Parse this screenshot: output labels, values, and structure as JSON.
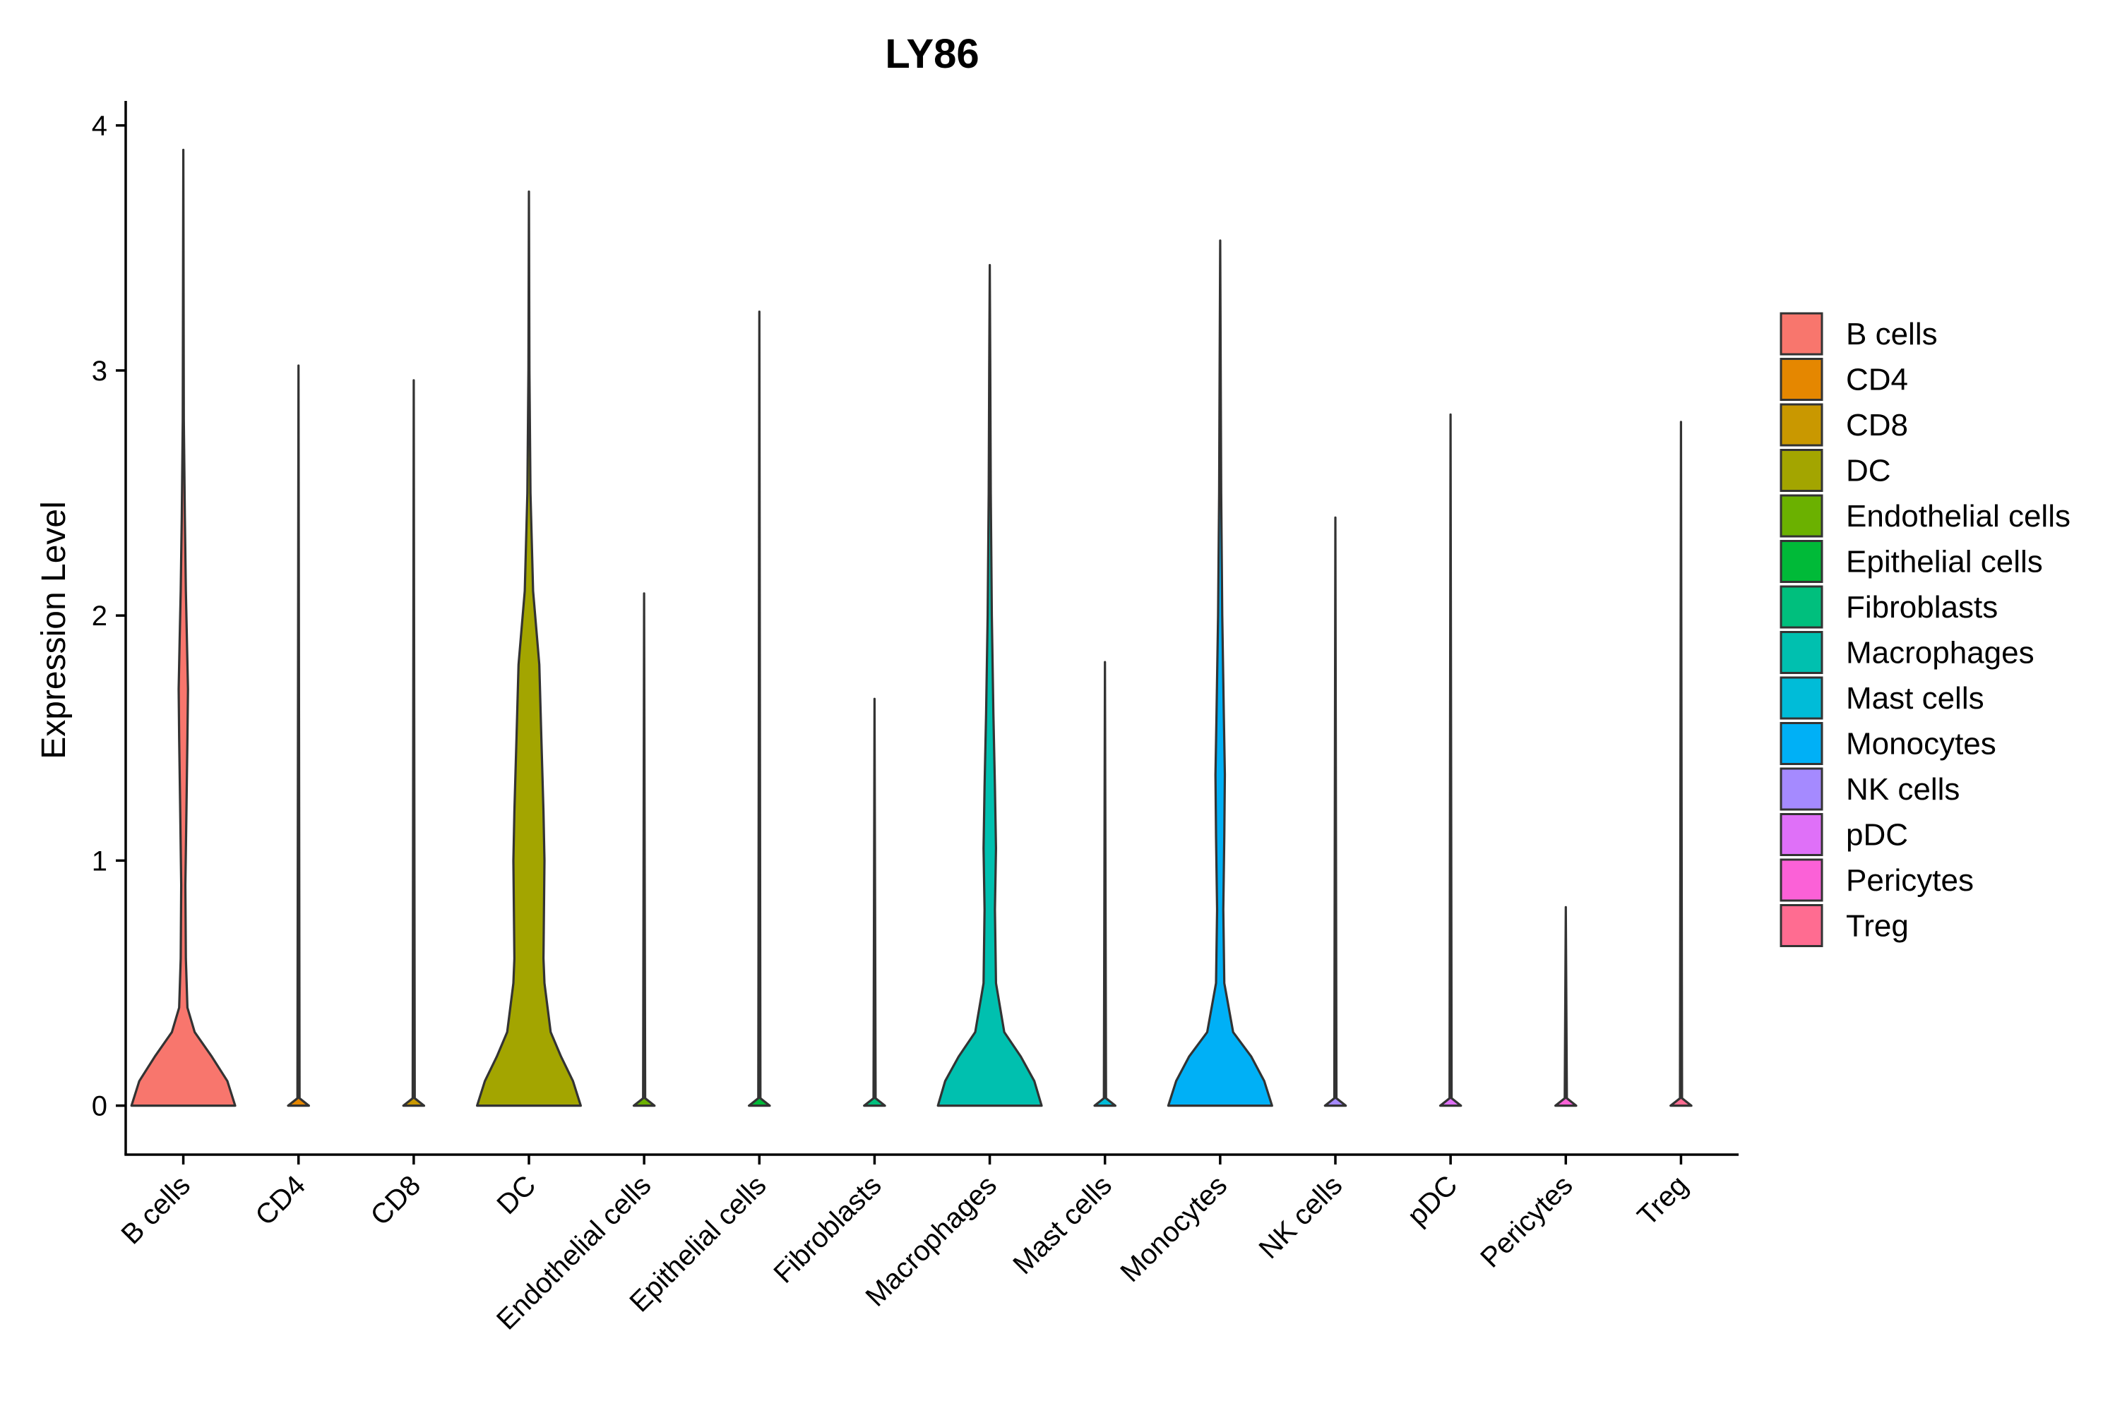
{
  "chart_data": {
    "type": "violin",
    "title": "LY86",
    "xlabel": "",
    "ylabel": "Expression Level",
    "ylim": [
      -0.2,
      4.1
    ],
    "yticks": [
      0,
      1,
      2,
      3,
      4
    ],
    "categories": [
      "B cells",
      "CD4",
      "CD8",
      "DC",
      "Endothelial cells",
      "Epithelial cells",
      "Fibroblasts",
      "Macrophages",
      "Mast cells",
      "Monocytes",
      "NK cells",
      "pDC",
      "Pericytes",
      "Treg"
    ],
    "max_values": [
      3.9,
      3.02,
      2.96,
      3.73,
      2.09,
      3.24,
      1.66,
      3.43,
      1.81,
      3.53,
      2.4,
      2.82,
      0.81,
      2.79
    ],
    "violin_profiles": [
      [
        [
          0,
          1.0
        ],
        [
          0.1,
          0.85
        ],
        [
          0.2,
          0.55
        ],
        [
          0.3,
          0.22
        ],
        [
          0.4,
          0.08
        ],
        [
          0.6,
          0.05
        ],
        [
          0.9,
          0.04
        ],
        [
          1.2,
          0.06
        ],
        [
          1.5,
          0.08
        ],
        [
          1.7,
          0.09
        ],
        [
          1.9,
          0.07
        ],
        [
          2.1,
          0.05
        ],
        [
          2.4,
          0.03
        ],
        [
          2.8,
          0.01
        ],
        [
          3.9,
          0.0
        ]
      ],
      [
        [
          0,
          0.2
        ],
        [
          0.03,
          0.02
        ],
        [
          3.02,
          0.0
        ]
      ],
      [
        [
          0,
          0.2
        ],
        [
          0.03,
          0.02
        ],
        [
          2.96,
          0.0
        ]
      ],
      [
        [
          0,
          1.0
        ],
        [
          0.1,
          0.85
        ],
        [
          0.2,
          0.62
        ],
        [
          0.3,
          0.42
        ],
        [
          0.4,
          0.36
        ],
        [
          0.5,
          0.3
        ],
        [
          0.6,
          0.28
        ],
        [
          0.8,
          0.29
        ],
        [
          1.0,
          0.3
        ],
        [
          1.2,
          0.28
        ],
        [
          1.5,
          0.24
        ],
        [
          1.8,
          0.2
        ],
        [
          2.1,
          0.08
        ],
        [
          2.5,
          0.03
        ],
        [
          3.0,
          0.01
        ],
        [
          3.73,
          0.0
        ]
      ],
      [
        [
          0,
          0.2
        ],
        [
          0.03,
          0.02
        ],
        [
          2.09,
          0.0
        ]
      ],
      [
        [
          0,
          0.2
        ],
        [
          0.03,
          0.02
        ],
        [
          3.24,
          0.0
        ]
      ],
      [
        [
          0,
          0.2
        ],
        [
          0.03,
          0.02
        ],
        [
          1.66,
          0.0
        ]
      ],
      [
        [
          0,
          1.0
        ],
        [
          0.1,
          0.86
        ],
        [
          0.2,
          0.6
        ],
        [
          0.3,
          0.28
        ],
        [
          0.5,
          0.12
        ],
        [
          0.8,
          0.1
        ],
        [
          1.05,
          0.12
        ],
        [
          1.3,
          0.1
        ],
        [
          1.6,
          0.07
        ],
        [
          2.0,
          0.04
        ],
        [
          2.5,
          0.02
        ],
        [
          3.0,
          0.01
        ],
        [
          3.43,
          0.0
        ]
      ],
      [
        [
          0,
          0.2
        ],
        [
          0.03,
          0.02
        ],
        [
          1.81,
          0.0
        ]
      ],
      [
        [
          0,
          1.0
        ],
        [
          0.1,
          0.85
        ],
        [
          0.2,
          0.6
        ],
        [
          0.3,
          0.25
        ],
        [
          0.5,
          0.08
        ],
        [
          0.8,
          0.06
        ],
        [
          1.1,
          0.08
        ],
        [
          1.35,
          0.09
        ],
        [
          1.6,
          0.07
        ],
        [
          2.0,
          0.04
        ],
        [
          2.5,
          0.02
        ],
        [
          3.0,
          0.01
        ],
        [
          3.53,
          0.0
        ]
      ],
      [
        [
          0,
          0.2
        ],
        [
          0.03,
          0.02
        ],
        [
          2.4,
          0.0
        ]
      ],
      [
        [
          0,
          0.2
        ],
        [
          0.03,
          0.02
        ],
        [
          2.82,
          0.0
        ]
      ],
      [
        [
          0,
          0.2
        ],
        [
          0.03,
          0.02
        ],
        [
          0.81,
          0.0
        ]
      ],
      [
        [
          0,
          0.2
        ],
        [
          0.03,
          0.02
        ],
        [
          2.79,
          0.0
        ]
      ]
    ],
    "colors": [
      "#F8766D",
      "#E58700",
      "#C99800",
      "#A3A500",
      "#6BB100",
      "#00BA38",
      "#00BF7D",
      "#00C0AF",
      "#00BCD8",
      "#00B0F6",
      "#A58AFF",
      "#DF70F8",
      "#FB61D7",
      "#FF6C91"
    ],
    "legend": {
      "position": "right",
      "entries": [
        "B cells",
        "CD4",
        "CD8",
        "DC",
        "Endothelial cells",
        "Epithelial cells",
        "Fibroblasts",
        "Macrophages",
        "Mast cells",
        "Monocytes",
        "NK cells",
        "pDC",
        "Pericytes",
        "Treg"
      ]
    },
    "grid": false
  }
}
